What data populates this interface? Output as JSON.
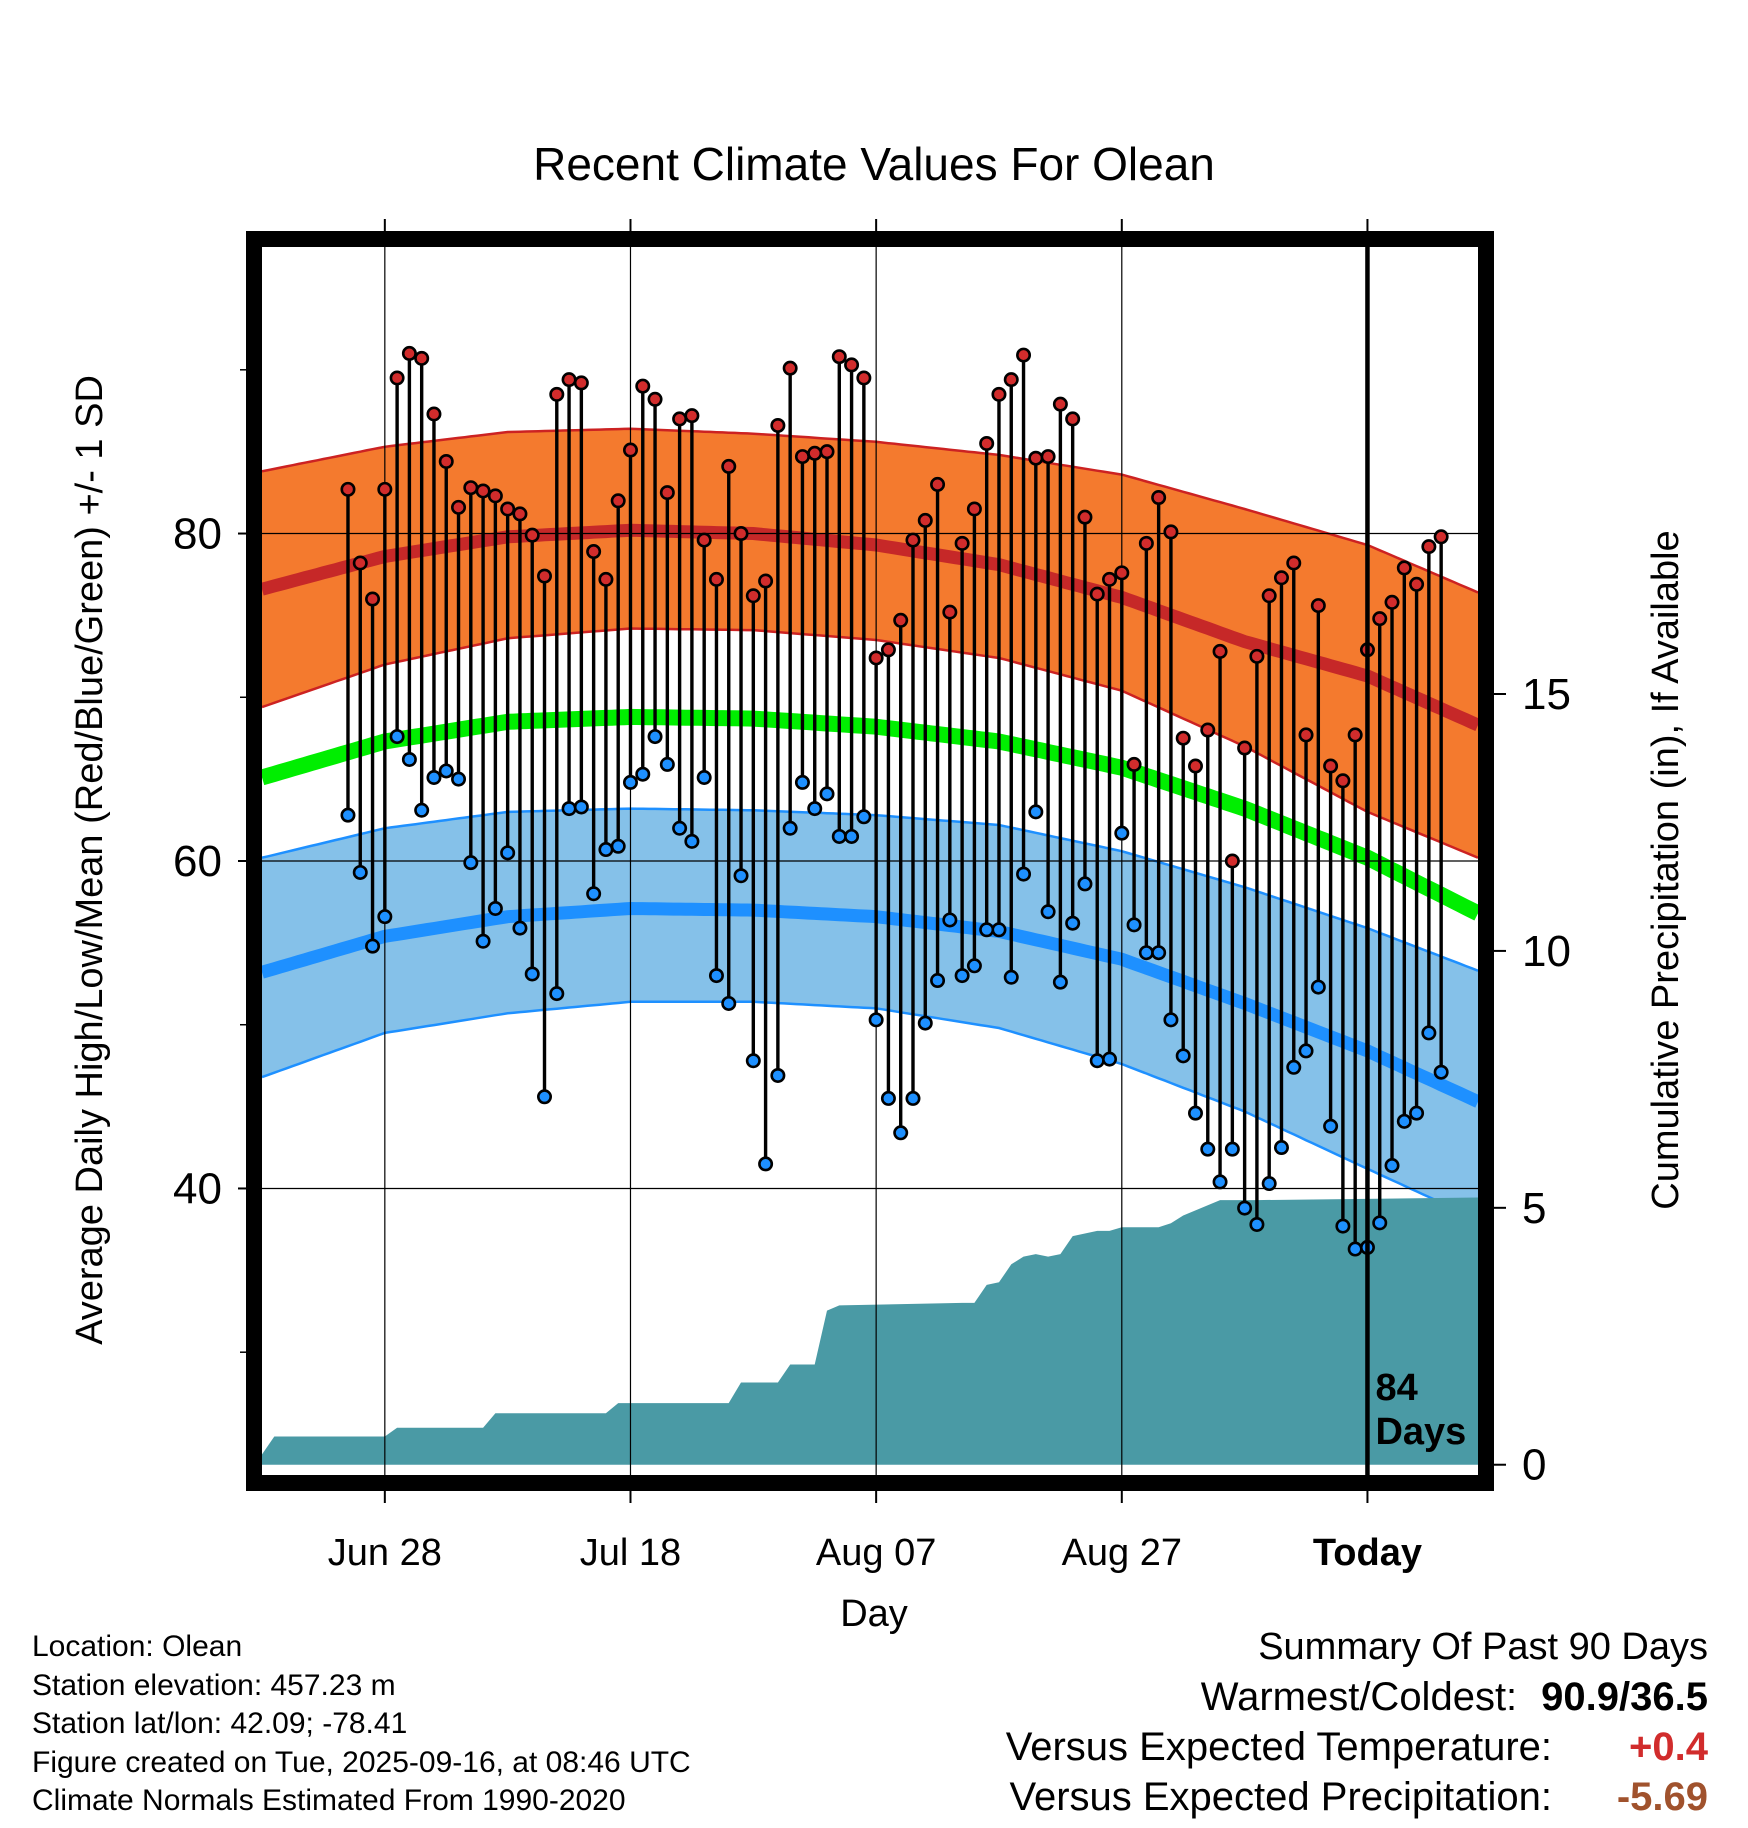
{
  "chart_data": {
    "type": "line",
    "title": "Recent Climate Values For Olean",
    "xlabel": "Day",
    "ylabel": "Average Daily High/Low/Mean (Red/Blue/Green) +/- 1 SD",
    "y2label": "Cumulative Precipitation (in), If Available",
    "x_range": [
      -90,
      9
    ],
    "ylim": [
      22.5,
      97.5
    ],
    "y2lim": [
      -0.2,
      23.7
    ],
    "y_ticks": [
      "80",
      "60",
      "40"
    ],
    "y_tick_values": [
      80,
      60,
      40
    ],
    "y_minor_ticks": [
      90,
      70,
      50,
      30
    ],
    "y2_ticks": [
      "15",
      "10",
      "5",
      "0"
    ],
    "y2_tick_values": [
      15,
      10,
      5,
      0
    ],
    "x_ticks": [
      "Jun 28",
      "Jul 18",
      "Aug 07",
      "Aug 27",
      "Today"
    ],
    "x_tick_days": [
      -80,
      -60,
      -40,
      -20,
      0
    ],
    "today_day": 0,
    "today_label": "84\nDays",
    "normal_high": {
      "days": [
        -90,
        -80,
        -70,
        -60,
        -50,
        -40,
        -30,
        -20,
        -10,
        0,
        9
      ],
      "mean": [
        76.6,
        78.6,
        79.8,
        80.2,
        80.0,
        79.3,
        78.1,
        76.1,
        73.4,
        71.3,
        68.3
      ],
      "upper": [
        83.8,
        85.3,
        86.2,
        86.4,
        86.1,
        85.6,
        84.8,
        83.6,
        81.5,
        79.3,
        76.4
      ],
      "lower": [
        69.4,
        72.0,
        73.6,
        74.2,
        74.1,
        73.5,
        72.4,
        70.4,
        67.0,
        63.0,
        60.2
      ]
    },
    "normal_mean": {
      "days": [
        -90,
        -80,
        -70,
        -60,
        -50,
        -40,
        -30,
        -20,
        -10,
        0,
        9
      ],
      "values": [
        65.1,
        67.3,
        68.5,
        68.8,
        68.7,
        68.2,
        67.3,
        65.7,
        63.2,
        60.2,
        56.8
      ]
    },
    "normal_low": {
      "days": [
        -90,
        -80,
        -70,
        -60,
        -50,
        -40,
        -30,
        -20,
        -10,
        0,
        9
      ],
      "mean": [
        53.2,
        55.4,
        56.6,
        57.1,
        57.0,
        56.6,
        55.7,
        54.0,
        51.3,
        48.4,
        45.3
      ],
      "upper": [
        60.2,
        62.0,
        63.0,
        63.2,
        63.1,
        62.8,
        62.2,
        60.6,
        58.4,
        55.9,
        53.3
      ],
      "lower": [
        46.8,
        49.5,
        50.7,
        51.4,
        51.4,
        51.0,
        49.8,
        47.6,
        44.7,
        41.2,
        38.1
      ]
    },
    "series": [
      {
        "name": "Daily High",
        "color": "#d12c2c",
        "start_day": -83,
        "values": [
          82.7,
          78.2,
          76.0,
          82.7,
          89.5,
          91.0,
          90.7,
          87.3,
          84.4,
          81.6,
          82.8,
          82.6,
          82.3,
          81.5,
          81.2,
          79.9,
          77.4,
          88.5,
          89.4,
          89.2,
          78.9,
          77.2,
          82.0,
          85.1,
          89.0,
          88.2,
          82.5,
          87.0,
          87.2,
          79.6,
          77.2,
          84.1,
          80.0,
          76.2,
          77.1,
          86.6,
          90.1,
          84.7,
          84.9,
          85.0,
          90.8,
          90.3,
          89.5,
          72.4,
          72.9,
          74.7,
          79.6,
          80.8,
          83.0,
          75.2,
          79.4,
          81.5,
          85.5,
          88.5,
          89.4,
          90.9,
          84.6,
          84.7,
          87.9,
          87.0,
          81.0,
          76.3,
          77.2,
          77.6,
          65.9,
          79.4,
          82.2,
          80.1,
          67.5,
          65.8,
          68.0,
          72.8,
          60.0,
          66.9,
          72.5,
          76.2,
          77.3,
          78.2,
          67.7,
          75.6,
          65.8,
          64.9,
          67.7,
          72.9,
          74.8,
          75.8,
          77.9,
          76.9,
          79.2,
          79.8
        ]
      },
      {
        "name": "Daily Low",
        "color": "#1e90ff",
        "start_day": -83,
        "values": [
          62.8,
          59.3,
          54.8,
          56.6,
          67.6,
          66.2,
          63.1,
          65.1,
          65.5,
          65.0,
          59.9,
          55.1,
          57.1,
          60.5,
          55.9,
          53.1,
          45.6,
          51.9,
          63.2,
          63.3,
          58.0,
          60.7,
          60.9,
          64.8,
          65.3,
          67.6,
          65.9,
          62.0,
          61.2,
          65.1,
          53.0,
          51.3,
          59.1,
          47.8,
          41.5,
          46.9,
          62.0,
          64.8,
          63.2,
          64.1,
          61.5,
          61.5,
          62.7,
          50.3,
          45.5,
          43.4,
          45.5,
          50.1,
          52.7,
          56.4,
          53.0,
          53.6,
          55.8,
          55.8,
          52.9,
          59.2,
          63.0,
          56.9,
          52.6,
          56.2,
          58.6,
          47.8,
          47.9,
          61.7,
          56.1,
          54.4,
          54.4,
          50.3,
          48.1,
          44.6,
          42.4,
          40.4,
          42.4,
          38.8,
          37.8,
          40.3,
          42.5,
          47.4,
          48.4,
          52.3,
          43.8,
          37.7,
          36.3,
          36.4,
          37.9,
          41.4,
          44.1,
          44.6,
          49.5,
          47.1
        ]
      }
    ],
    "precipitation": {
      "name": "Cumulative Precipitation",
      "color": "#4a9aa5",
      "days": [
        -90,
        -89,
        -80,
        -79,
        -72,
        -71,
        -62,
        -61,
        -52,
        -51,
        -48,
        -47,
        -45,
        -44,
        -43,
        -33,
        -32,
        -31,
        -30,
        -29,
        -28,
        -27,
        -26,
        -25,
        -24,
        -23,
        -22,
        -21,
        -20,
        -19,
        -18,
        -17,
        -16,
        -15,
        -14,
        -13,
        -12,
        -11,
        -10,
        -9,
        9
      ],
      "values": [
        0.2,
        0.55,
        0.55,
        0.72,
        0.72,
        1.0,
        1.0,
        1.2,
        1.2,
        1.6,
        1.6,
        1.95,
        1.95,
        3.0,
        3.1,
        3.15,
        3.15,
        3.5,
        3.55,
        3.9,
        4.05,
        4.1,
        4.05,
        4.1,
        4.45,
        4.5,
        4.55,
        4.55,
        4.62,
        4.62,
        4.62,
        4.62,
        4.7,
        4.85,
        4.95,
        5.05,
        5.15,
        5.15,
        5.15,
        5.15,
        5.2
      ]
    }
  },
  "footer": {
    "location": "Location: Olean",
    "elevation": "Station elevation: 457.23 m",
    "latlon": "Station lat/lon: 42.09; -78.41",
    "created": "Figure created on Tue, 2025-09-16, at 08:46 UTC",
    "normals": "Climate Normals Estimated From 1990-2020"
  },
  "summary": {
    "heading": "Summary Of Past 90 Days",
    "warmest_label": "Warmest/Coldest:",
    "warmest_value": "90.9/36.5",
    "temp_label": "Versus Expected Temperature:",
    "temp_value": "+0.4",
    "temp_color": "#d12c2c",
    "precip_label": "Versus Expected Precipitation:",
    "precip_value": "-5.69",
    "precip_color": "#a0522d"
  }
}
